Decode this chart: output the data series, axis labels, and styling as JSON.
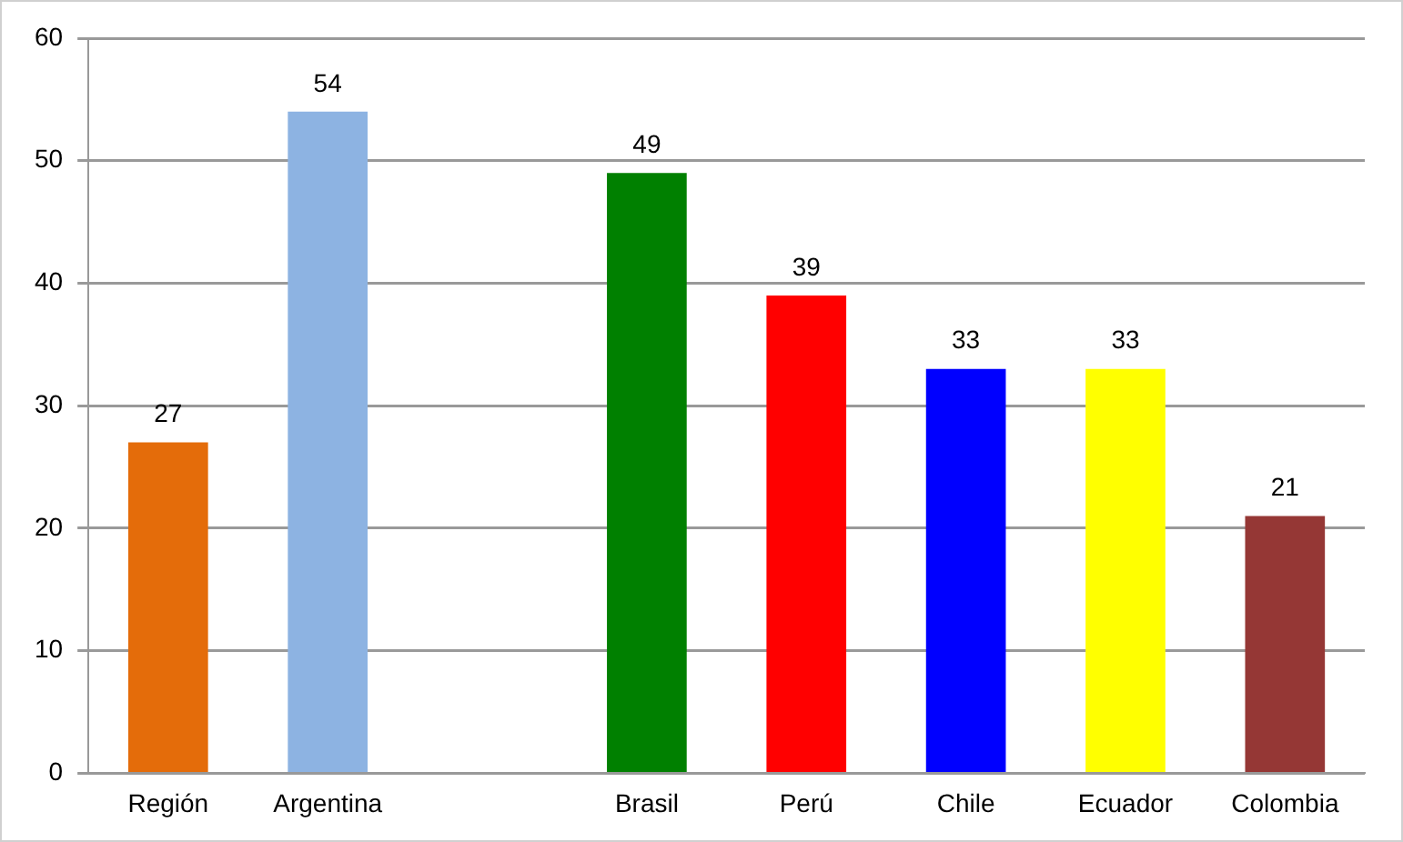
{
  "chart_data": {
    "type": "bar",
    "categories": [
      "Región",
      "Argentina",
      null,
      "Brasil",
      "Perú",
      "Chile",
      "Ecuador",
      "Colombia"
    ],
    "values": [
      27,
      54,
      null,
      49,
      39,
      33,
      33,
      21
    ],
    "colors": [
      "#e46c0a",
      "#8db3e2",
      "#ffffff",
      "#008000",
      "#ff0000",
      "#0000ff",
      "#ffff00",
      "#953735"
    ],
    "ylim": [
      0,
      60
    ],
    "yticks": [
      0,
      10,
      20,
      30,
      40,
      50,
      60
    ],
    "grid": "y",
    "legend": false,
    "data_labels": true
  }
}
